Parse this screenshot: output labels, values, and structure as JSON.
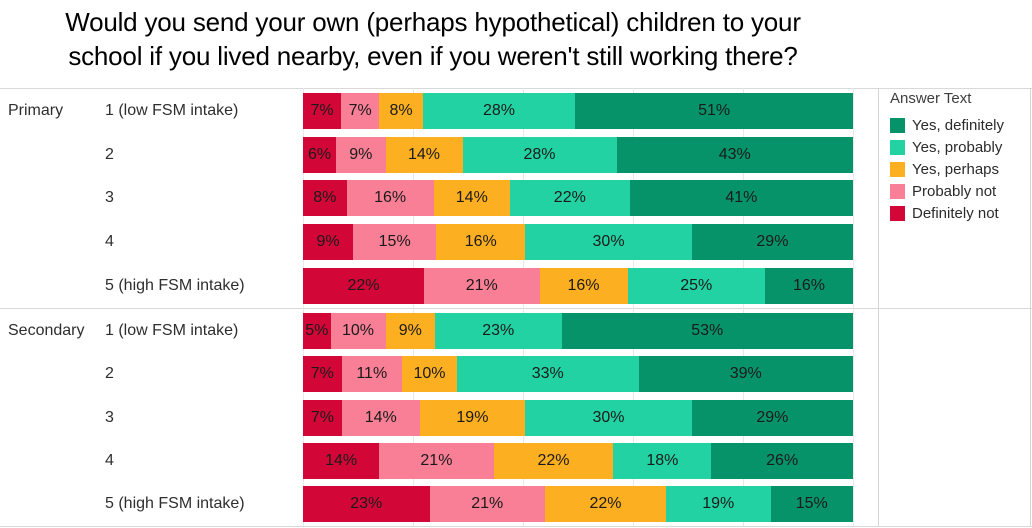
{
  "title": "Would you send your own (perhaps hypothetical) children to your school if you lived nearby, even if you weren't still working there?",
  "legend": {
    "title": "Answer Text",
    "items": [
      {
        "label": "Yes, definitely",
        "color": "#079369"
      },
      {
        "label": "Yes, probably",
        "color": "#22d2a2"
      },
      {
        "label": "Yes, perhaps",
        "color": "#fcaf20"
      },
      {
        "label": "Probably not",
        "color": "#f87f95"
      },
      {
        "label": "Definitely not",
        "color": "#d20737"
      }
    ]
  },
  "chart_data": {
    "type": "bar",
    "variant": "stacked-horizontal",
    "unit": "%",
    "legend_position": "right",
    "gridlines": {
      "show": true,
      "x_interval_percent": 20,
      "x_range": [
        0,
        100
      ]
    },
    "stack_order_left_to_right": [
      "Definitely not",
      "Probably not",
      "Yes, perhaps",
      "Yes, probably",
      "Yes, definitely"
    ],
    "series_colors": [
      "#d20737",
      "#f87f95",
      "#fcaf20",
      "#22d2a2",
      "#079369"
    ],
    "groups": [
      {
        "name": "Primary",
        "rows": [
          {
            "label": "1 (low FSM intake)",
            "values": [
              7,
              7,
              8,
              28,
              51
            ]
          },
          {
            "label": "2",
            "values": [
              6,
              9,
              14,
              28,
              43
            ]
          },
          {
            "label": "3",
            "values": [
              8,
              16,
              14,
              22,
              41
            ]
          },
          {
            "label": "4",
            "values": [
              9,
              15,
              16,
              30,
              29
            ]
          },
          {
            "label": "5 (high FSM intake)",
            "values": [
              22,
              21,
              16,
              25,
              16
            ]
          }
        ]
      },
      {
        "name": "Secondary",
        "rows": [
          {
            "label": "1 (low FSM intake)",
            "values": [
              5,
              10,
              9,
              23,
              53
            ]
          },
          {
            "label": "2",
            "values": [
              7,
              11,
              10,
              33,
              39
            ]
          },
          {
            "label": "3",
            "values": [
              7,
              14,
              19,
              30,
              29
            ]
          },
          {
            "label": "4",
            "values": [
              14,
              21,
              22,
              18,
              26
            ]
          },
          {
            "label": "5 (high FSM intake)",
            "values": [
              23,
              21,
              22,
              19,
              15
            ]
          }
        ]
      }
    ]
  }
}
